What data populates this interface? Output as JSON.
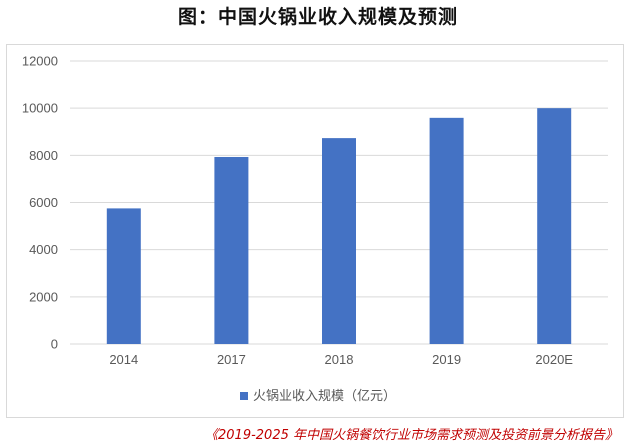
{
  "chart_data": {
    "type": "bar",
    "title": "图：中国火锅业收入规模及预测",
    "categories": [
      "2014",
      "2017",
      "2018",
      "2019",
      "2020E"
    ],
    "series": [
      {
        "name": "火锅业收入规模（亿元）",
        "values": [
          5750,
          7930,
          8730,
          9590,
          10000
        ]
      }
    ],
    "xlabel": "",
    "ylabel": "",
    "ylim": [
      0,
      12000
    ],
    "yticks": [
      0,
      2000,
      4000,
      6000,
      8000,
      10000,
      12000
    ],
    "grid": true,
    "legend_position": "bottom",
    "colors": {
      "bar": "#4472C4",
      "grid": "#d9d9d9",
      "axis_text": "#595959"
    }
  },
  "source_note": "《2019-2025 年中国火锅餐饮行业市场需求预测及投资前景分析报告》"
}
